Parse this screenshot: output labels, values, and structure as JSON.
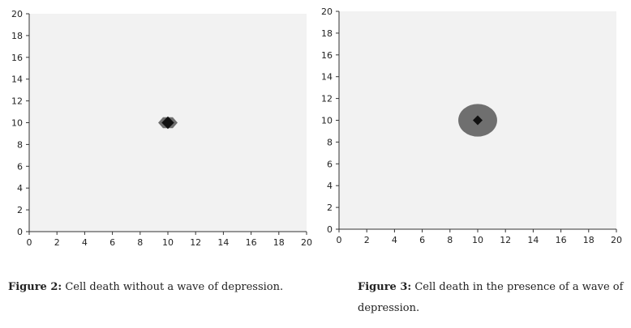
{
  "chart_data": [
    {
      "type": "heatmap",
      "title": "",
      "xlabel": "",
      "ylabel": "",
      "xlim": [
        0,
        20
      ],
      "ylim": [
        0,
        20
      ],
      "x_ticks": [
        "0",
        "2",
        "4",
        "6",
        "8",
        "10",
        "12",
        "14",
        "16",
        "18",
        "20"
      ],
      "y_ticks": [
        "0",
        "2",
        "4",
        "6",
        "8",
        "10",
        "12",
        "14",
        "16",
        "18",
        "20"
      ],
      "background_color": "#f2f2f2",
      "grid": false,
      "core": {
        "x": 10,
        "y": 10,
        "radius": 0.45,
        "color": "#111111"
      },
      "damage_region": {
        "x": 10,
        "y": 10,
        "radius_x": 0.7,
        "radius_y": 0.5,
        "shape": "diamond",
        "color": "#6f6f6f"
      },
      "caption_label": "Figure 2:",
      "caption_text": " Cell death without a wave of depression."
    },
    {
      "type": "heatmap",
      "title": "",
      "xlabel": "",
      "ylabel": "",
      "xlim": [
        0,
        20
      ],
      "ylim": [
        0,
        20
      ],
      "x_ticks": [
        "0",
        "2",
        "4",
        "6",
        "8",
        "10",
        "12",
        "14",
        "16",
        "18",
        "20"
      ],
      "y_ticks": [
        "0",
        "2",
        "4",
        "6",
        "8",
        "10",
        "12",
        "14",
        "16",
        "18",
        "20"
      ],
      "background_color": "#f2f2f2",
      "grid": false,
      "core": {
        "x": 10,
        "y": 10,
        "radius": 0.35,
        "color": "#111111"
      },
      "damage_region": {
        "x": 10,
        "y": 10,
        "radius_x": 1.4,
        "radius_y": 1.5,
        "shape": "ellipse",
        "color": "#6f6f6f"
      },
      "caption_label": "Figure 3:",
      "caption_text": " Cell death in the presence of a wave of depression."
    }
  ]
}
